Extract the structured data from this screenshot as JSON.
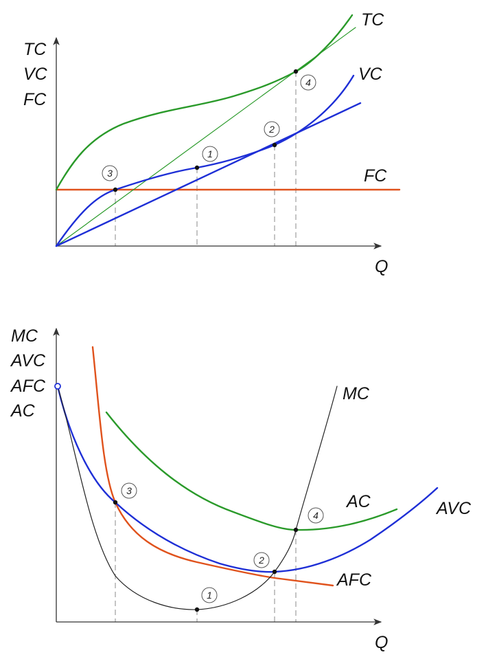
{
  "colors": {
    "tc": "#2a9a2a",
    "vc": "#1e2fd6",
    "fc": "#e0521c",
    "mc": "#222222",
    "ac": "#2a9a2a",
    "avc": "#1e2fd6",
    "afc": "#e0521c"
  },
  "top": {
    "y_axis_labels": [
      "TC",
      "VC",
      "FC"
    ],
    "x_axis_label": "Q",
    "curve_labels": {
      "tc": "TC",
      "vc": "VC",
      "fc": "FC"
    },
    "points": [
      "3",
      "1",
      "2",
      "4"
    ]
  },
  "bottom": {
    "y_axis_labels": [
      "MC",
      "AVC",
      "AFC",
      "AC"
    ],
    "x_axis_label": "Q",
    "curve_labels": {
      "mc": "MC",
      "ac": "AC",
      "avc": "AVC",
      "afc": "AFC"
    },
    "points": [
      "3",
      "1",
      "2",
      "4"
    ]
  }
}
